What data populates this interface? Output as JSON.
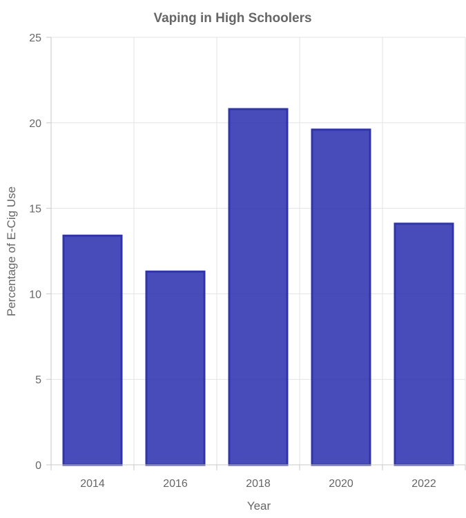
{
  "chart_data": {
    "type": "bar",
    "title": "Vaping in High Schoolers",
    "xlabel": "Year",
    "ylabel": "Percentage of E-Cig Use",
    "categories": [
      "2014",
      "2016",
      "2018",
      "2020",
      "2022"
    ],
    "values": [
      13.4,
      11.3,
      20.8,
      19.6,
      14.1
    ],
    "ylim": [
      0,
      25
    ],
    "yticks": [
      0,
      5,
      10,
      15,
      20,
      25
    ],
    "grid": true,
    "legend": "none",
    "colors": {
      "bar_fill": "#2a2fb0",
      "bar_stroke": "#2f34a8"
    }
  }
}
